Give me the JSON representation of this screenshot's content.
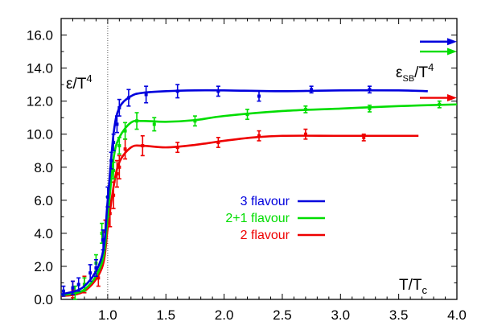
{
  "chart_data": {
    "type": "line",
    "title": "",
    "xlabel": {
      "main": "T/T",
      "sub": "c"
    },
    "ylabel": {
      "main": "ε/T",
      "sup": "4"
    },
    "sb_label": {
      "main": "ε",
      "sub": "SB",
      "rest": "/T",
      "sup": "4"
    },
    "xlim": [
      0.6,
      4.0
    ],
    "ylim": [
      0.0,
      17.0
    ],
    "x_ticks": [
      "1.0",
      "1.5",
      "2.0",
      "2.5",
      "3.0",
      "3.5",
      "4.0"
    ],
    "x_tick_values": [
      1.0,
      1.5,
      2.0,
      2.5,
      3.0,
      3.5,
      4.0
    ],
    "y_ticks": [
      "0.0",
      "2.0",
      "4.0",
      "6.0",
      "8.0",
      "10.0",
      "12.0",
      "14.0",
      "16.0"
    ],
    "y_tick_values": [
      0,
      2,
      4,
      6,
      8,
      10,
      12,
      14,
      16
    ],
    "vline_x": 1.0,
    "legend": {
      "placement": "center"
    },
    "series": [
      {
        "name": "3 flavour",
        "color": "#0000dd",
        "curve": [
          [
            0.6,
            0.3
          ],
          [
            0.8,
            0.8
          ],
          [
            0.95,
            2.6
          ],
          [
            1.0,
            6.0
          ],
          [
            1.05,
            10.0
          ],
          [
            1.1,
            11.6
          ],
          [
            1.2,
            12.3
          ],
          [
            1.3,
            12.5
          ],
          [
            1.5,
            12.6
          ],
          [
            1.75,
            12.65
          ],
          [
            2.0,
            12.65
          ],
          [
            2.5,
            12.6
          ],
          [
            3.0,
            12.65
          ],
          [
            3.5,
            12.65
          ],
          [
            3.75,
            12.6
          ]
        ],
        "points": [
          [
            0.62,
            0.5,
            0.3
          ],
          [
            0.7,
            0.7,
            0.4
          ],
          [
            0.75,
            0.9,
            0.4
          ],
          [
            0.85,
            1.6,
            0.5
          ],
          [
            0.9,
            1.9,
            0.5
          ],
          [
            0.96,
            3.6,
            0.6
          ],
          [
            1.0,
            6.2,
            0.6
          ],
          [
            1.03,
            8.4,
            0.5
          ],
          [
            1.05,
            9.5,
            0.5
          ],
          [
            1.08,
            10.6,
            0.5
          ],
          [
            1.1,
            11.6,
            0.5
          ],
          [
            1.18,
            12.2,
            0.5
          ],
          [
            1.33,
            12.4,
            0.5
          ],
          [
            1.6,
            12.6,
            0.4
          ],
          [
            1.95,
            12.6,
            0.3
          ],
          [
            2.3,
            12.3,
            0.3
          ],
          [
            2.75,
            12.7,
            0.2
          ],
          [
            3.25,
            12.7,
            0.2
          ]
        ],
        "sb_arrow": 15.6
      },
      {
        "name": "2+1 flavour",
        "color": "#00dd00",
        "curve": [
          [
            0.6,
            0.25
          ],
          [
            0.8,
            0.6
          ],
          [
            0.95,
            2.2
          ],
          [
            1.0,
            5.0
          ],
          [
            1.05,
            8.5
          ],
          [
            1.1,
            9.8
          ],
          [
            1.2,
            10.7
          ],
          [
            1.3,
            10.8
          ],
          [
            1.5,
            10.75
          ],
          [
            1.75,
            10.85
          ],
          [
            2.0,
            11.1
          ],
          [
            2.5,
            11.4
          ],
          [
            3.0,
            11.55
          ],
          [
            3.5,
            11.7
          ],
          [
            4.0,
            11.8
          ]
        ],
        "points": [
          [
            0.72,
            0.4,
            0.4
          ],
          [
            0.8,
            0.9,
            0.4
          ],
          [
            0.9,
            2.2,
            0.5
          ],
          [
            0.95,
            4.0,
            0.6
          ],
          [
            1.0,
            5.6,
            0.6
          ],
          [
            1.05,
            7.8,
            0.5
          ],
          [
            1.1,
            9.3,
            0.5
          ],
          [
            1.15,
            10.2,
            0.5
          ],
          [
            1.25,
            10.8,
            0.5
          ],
          [
            1.4,
            10.6,
            0.4
          ],
          [
            1.75,
            10.8,
            0.3
          ],
          [
            2.2,
            11.2,
            0.3
          ],
          [
            2.7,
            11.5,
            0.2
          ],
          [
            3.25,
            11.55,
            0.2
          ],
          [
            3.85,
            11.8,
            0.2
          ]
        ],
        "sb_arrow": 15.0
      },
      {
        "name": "2 flavour",
        "color": "#ee0000",
        "curve": [
          [
            0.6,
            0.2
          ],
          [
            0.8,
            0.5
          ],
          [
            0.95,
            1.9
          ],
          [
            1.0,
            4.3
          ],
          [
            1.05,
            6.8
          ],
          [
            1.1,
            8.3
          ],
          [
            1.2,
            9.2
          ],
          [
            1.3,
            9.3
          ],
          [
            1.5,
            9.2
          ],
          [
            1.75,
            9.35
          ],
          [
            2.0,
            9.6
          ],
          [
            2.25,
            9.8
          ],
          [
            2.5,
            9.9
          ],
          [
            3.0,
            9.9
          ],
          [
            3.5,
            9.9
          ],
          [
            3.67,
            9.9
          ]
        ],
        "points": [
          [
            0.7,
            0.6,
            0.5
          ],
          [
            0.8,
            0.9,
            0.5
          ],
          [
            0.92,
            1.3,
            0.5
          ],
          [
            0.98,
            4.1,
            0.7
          ],
          [
            1.02,
            5.2,
            0.8
          ],
          [
            1.05,
            6.3,
            0.8
          ],
          [
            1.08,
            7.6,
            0.8
          ],
          [
            1.1,
            8.0,
            0.7
          ],
          [
            1.15,
            9.1,
            0.6
          ],
          [
            1.3,
            9.3,
            0.6
          ],
          [
            1.6,
            9.2,
            0.3
          ],
          [
            1.95,
            9.5,
            0.3
          ],
          [
            2.3,
            9.9,
            0.3
          ],
          [
            2.7,
            10.0,
            0.3
          ],
          [
            3.2,
            9.8,
            0.2
          ]
        ],
        "sb_arrow": 12.2
      }
    ]
  }
}
